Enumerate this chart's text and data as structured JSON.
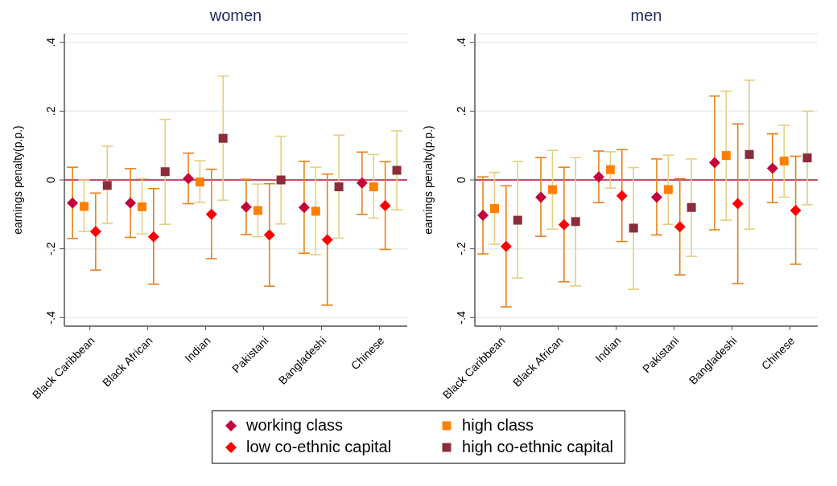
{
  "chart_data": [
    {
      "type": "scatter",
      "title": "women",
      "ylabel": "earnings penalty(p.p.)",
      "categories": [
        "Black Caribbean",
        "Black African",
        "Indian",
        "Pakistani",
        "Bangladeshi",
        "Chinese"
      ],
      "series": [
        {
          "name": "working class",
          "color": "#c4003c",
          "marker": "diamond",
          "values": [
            -0.067,
            -0.067,
            0.004,
            -0.079,
            -0.08,
            -0.009
          ],
          "errors": [
            [
              -0.17,
              0.037
            ],
            [
              -0.167,
              0.033
            ],
            [
              -0.069,
              0.078
            ],
            [
              -0.159,
              0.002
            ],
            [
              -0.213,
              0.054
            ],
            [
              -0.1,
              0.081
            ]
          ]
        },
        {
          "name": "high class",
          "color": "#ff8000",
          "marker": "square",
          "values": [
            -0.077,
            -0.078,
            -0.006,
            -0.089,
            -0.091,
            -0.02
          ],
          "errors": [
            [
              -0.15,
              0.0
            ],
            [
              -0.157,
              0.004
            ],
            [
              -0.065,
              0.056
            ],
            [
              -0.165,
              -0.012
            ],
            [
              -0.217,
              0.037
            ],
            [
              -0.111,
              0.074
            ]
          ]
        },
        {
          "name": "low co-ethnic capital",
          "color": "#ff0000",
          "marker": "diamond",
          "values": [
            -0.15,
            -0.165,
            -0.1,
            -0.16,
            -0.174,
            -0.075
          ],
          "errors": [
            [
              -0.262,
              -0.038
            ],
            [
              -0.303,
              -0.025
            ],
            [
              -0.229,
              0.031
            ],
            [
              -0.309,
              -0.011
            ],
            [
              -0.364,
              0.017
            ],
            [
              -0.202,
              0.053
            ]
          ]
        },
        {
          "name": "high co-ethnic capital",
          "color": "#8b2c3a",
          "marker": "square",
          "values": [
            -0.016,
            0.024,
            0.121,
            0.0,
            -0.02,
            0.028
          ],
          "errors": [
            [
              -0.126,
              0.098
            ],
            [
              -0.129,
              0.176
            ],
            [
              -0.059,
              0.302
            ],
            [
              -0.128,
              0.127
            ],
            [
              -0.169,
              0.13
            ],
            [
              -0.087,
              0.143
            ]
          ]
        }
      ],
      "ylim": [
        -0.425,
        0.425
      ],
      "yticks": [
        {
          "value": -0.4,
          "label": "-.4"
        },
        {
          "value": -0.2,
          "label": "-.2"
        },
        0,
        {
          "value": 0.2,
          "label": ".2"
        },
        {
          "value": 0.4,
          "label": ".4"
        }
      ],
      "grid": "y",
      "ref_lines": [
        {
          "axis": "y",
          "value": 0,
          "color": "#b8143c"
        }
      ],
      "legend": "bottom"
    },
    {
      "type": "scatter",
      "title": "men",
      "ylabel": "earnings penalty(p.p.)",
      "categories": [
        "Black Caribbean",
        "Black African",
        "Indian",
        "Pakistani",
        "Bangladeshi",
        "Chinese"
      ],
      "series": [
        {
          "color": "#c4003c",
          "marker": "diamond",
          "values": [
            -0.103,
            -0.05,
            0.009,
            -0.05,
            0.05,
            0.034
          ],
          "errors": [
            [
              -0.215,
              0.009
            ],
            [
              -0.164,
              0.065
            ],
            [
              -0.066,
              0.084
            ],
            [
              -0.16,
              0.061
            ],
            [
              -0.145,
              0.244
            ],
            [
              -0.066,
              0.134
            ]
          ]
        },
        {
          "color": "#ff8000",
          "marker": "square",
          "values": [
            -0.083,
            -0.028,
            0.03,
            -0.028,
            0.071,
            0.055
          ],
          "errors": [
            [
              -0.187,
              0.022
            ],
            [
              -0.143,
              0.086
            ],
            [
              -0.024,
              0.082
            ],
            [
              -0.129,
              0.072
            ],
            [
              -0.117,
              0.258
            ],
            [
              -0.05,
              0.159
            ]
          ]
        },
        {
          "color": "#ff0000",
          "marker": "diamond",
          "values": [
            -0.193,
            -0.13,
            -0.046,
            -0.136,
            -0.069,
            -0.089
          ],
          "errors": [
            [
              -0.369,
              -0.017
            ],
            [
              -0.296,
              0.037
            ],
            [
              -0.179,
              0.088
            ],
            [
              -0.276,
              0.004
            ],
            [
              -0.301,
              0.163
            ],
            [
              -0.245,
              0.069
            ]
          ]
        },
        {
          "color": "#8b2c3a",
          "marker": "square",
          "values": [
            -0.117,
            -0.121,
            -0.14,
            -0.08,
            0.074,
            0.064
          ],
          "errors": [
            [
              -0.285,
              0.054
            ],
            [
              -0.308,
              0.065
            ],
            [
              -0.318,
              0.036
            ],
            [
              -0.222,
              0.061
            ],
            [
              -0.143,
              0.29
            ],
            [
              -0.072,
              0.2
            ]
          ]
        }
      ],
      "ylim": [
        -0.425,
        0.425
      ],
      "yticks": [
        {
          "value": -0.4,
          "label": "-.4"
        },
        {
          "value": -0.2,
          "label": "-.2"
        },
        0,
        {
          "value": 0.2,
          "label": ".2"
        },
        {
          "value": 0.4,
          "label": ".4"
        }
      ],
      "grid": "y",
      "ref_lines": [
        {
          "axis": "y",
          "value": 0,
          "color": "#b8143c"
        }
      ]
    }
  ]
}
